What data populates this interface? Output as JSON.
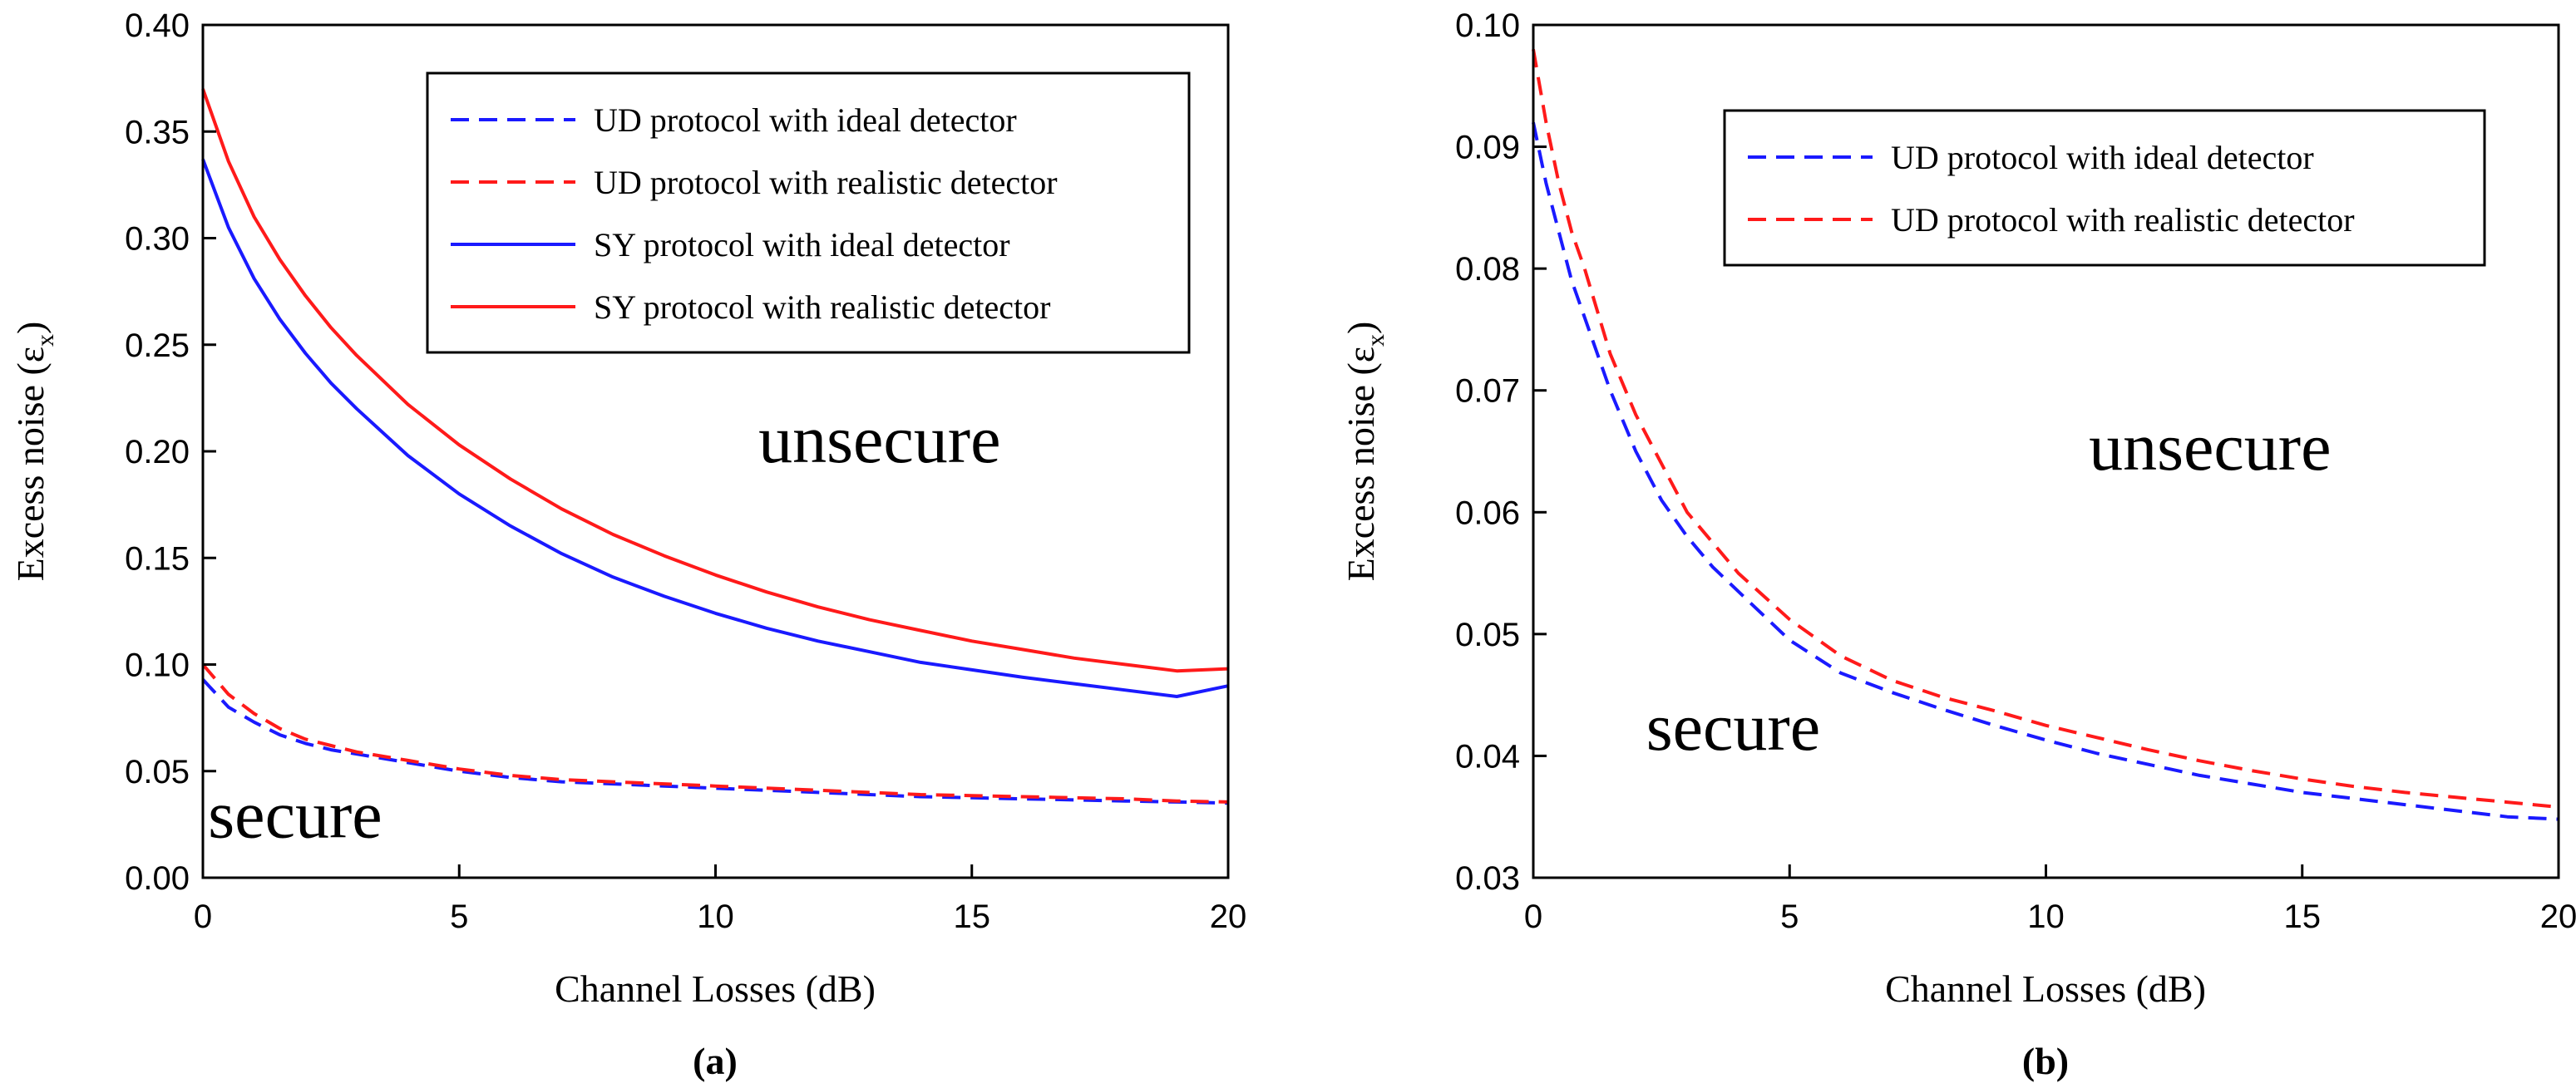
{
  "chart_data": [
    {
      "type": "line",
      "panel_label": "(a)",
      "xlabel": "Channel Losses (dB)",
      "ylabel": "Excess noise (ε",
      "ylabel_sub": "x",
      "ylabel_close": ")",
      "xlim": [
        0,
        20
      ],
      "ylim": [
        0,
        0.4
      ],
      "xticks": [
        "0",
        "5",
        "10",
        "15",
        "20"
      ],
      "yticks": [
        "0.00",
        "0.05",
        "0.10",
        "0.15",
        "0.20",
        "0.25",
        "0.30",
        "0.35",
        "0.40"
      ],
      "x": [
        0,
        0.5,
        1,
        1.5,
        2,
        2.5,
        3,
        4,
        5,
        6,
        7,
        8,
        9,
        10,
        11,
        12,
        13,
        14,
        15,
        16,
        17,
        18,
        19,
        20
      ],
      "series": [
        {
          "name": "UD protocol with ideal detector",
          "color": "#1a1aff",
          "dash": true,
          "values": [
            0.093,
            0.08,
            0.073,
            0.067,
            0.063,
            0.06,
            0.058,
            0.054,
            0.05,
            0.047,
            0.045,
            0.044,
            0.043,
            0.042,
            0.041,
            0.04,
            0.039,
            0.038,
            0.0375,
            0.037,
            0.0365,
            0.036,
            0.0355,
            0.035
          ]
        },
        {
          "name": "UD protocol with realistic detector",
          "color": "#ff1a1a",
          "dash": true,
          "values": [
            0.1,
            0.086,
            0.077,
            0.07,
            0.065,
            0.062,
            0.059,
            0.055,
            0.051,
            0.048,
            0.046,
            0.045,
            0.044,
            0.043,
            0.042,
            0.041,
            0.04,
            0.039,
            0.0385,
            0.038,
            0.0375,
            0.037,
            0.036,
            0.0355
          ]
        },
        {
          "name": "SY protocol with ideal detector",
          "color": "#1a1aff",
          "dash": false,
          "values": [
            0.337,
            0.305,
            0.281,
            0.262,
            0.246,
            0.232,
            0.22,
            0.198,
            0.18,
            0.165,
            0.152,
            0.141,
            0.132,
            0.124,
            0.117,
            0.111,
            0.106,
            0.101,
            0.0975,
            0.094,
            0.091,
            0.088,
            0.085,
            0.09
          ]
        },
        {
          "name": "SY protocol with realistic detector",
          "color": "#ff1a1a",
          "dash": false,
          "values": [
            0.37,
            0.336,
            0.31,
            0.29,
            0.273,
            0.258,
            0.245,
            0.222,
            0.203,
            0.187,
            0.173,
            0.161,
            0.151,
            0.142,
            0.134,
            0.127,
            0.121,
            0.116,
            0.111,
            0.107,
            0.103,
            0.1,
            0.097,
            0.098
          ]
        }
      ],
      "legend": [
        "UD protocol with ideal detector",
        "UD protocol with realistic detector",
        "SY protocol with ideal detector",
        "SY protocol with realistic detector"
      ],
      "legend_position": "top-right",
      "annotations": [
        {
          "text": "unsecure",
          "x": 13.2,
          "y": 0.195
        },
        {
          "text": "secure",
          "x": 1.8,
          "y": 0.019
        }
      ]
    },
    {
      "type": "line",
      "panel_label": "(b)",
      "xlabel": "Channel Losses (dB)",
      "ylabel": "Excess noise (ε",
      "ylabel_sub": "x",
      "ylabel_close": ")",
      "xlim": [
        0,
        20
      ],
      "ylim": [
        0.03,
        0.1
      ],
      "xticks": [
        "0",
        "5",
        "10",
        "15",
        "20"
      ],
      "yticks": [
        "0.03",
        "0.04",
        "0.05",
        "0.06",
        "0.07",
        "0.08",
        "0.09",
        "0.10"
      ],
      "x": [
        0,
        0.25,
        0.5,
        0.75,
        1,
        1.5,
        2,
        2.5,
        3,
        3.5,
        4,
        5,
        6,
        7,
        8,
        9,
        10,
        11,
        12,
        13,
        14,
        15,
        16,
        17,
        18,
        19,
        20
      ],
      "series": [
        {
          "name": "UD protocol with ideal detector",
          "color": "#1a1aff",
          "dash": true,
          "values": [
            0.092,
            0.087,
            0.083,
            0.079,
            0.076,
            0.07,
            0.065,
            0.061,
            0.058,
            0.0555,
            0.0535,
            0.0495,
            0.0468,
            0.0452,
            0.0438,
            0.0425,
            0.0413,
            0.0402,
            0.0393,
            0.0384,
            0.0377,
            0.037,
            0.0365,
            0.036,
            0.0355,
            0.035,
            0.0348
          ]
        },
        {
          "name": "UD protocol with realistic detector",
          "color": "#ff1a1a",
          "dash": true,
          "values": [
            0.098,
            0.092,
            0.087,
            0.083,
            0.08,
            0.073,
            0.068,
            0.064,
            0.06,
            0.0575,
            0.055,
            0.0512,
            0.0482,
            0.0462,
            0.0448,
            0.0437,
            0.0425,
            0.0415,
            0.0405,
            0.0396,
            0.0388,
            0.0381,
            0.0375,
            0.037,
            0.0366,
            0.0362,
            0.0358
          ]
        }
      ],
      "legend": [
        "UD protocol with ideal detector",
        "UD protocol with realistic detector"
      ],
      "legend_position": "top-right",
      "annotations": [
        {
          "text": "unsecure",
          "x": 13.2,
          "y": 0.0635
        },
        {
          "text": "secure",
          "x": 3.9,
          "y": 0.0405
        }
      ]
    }
  ]
}
